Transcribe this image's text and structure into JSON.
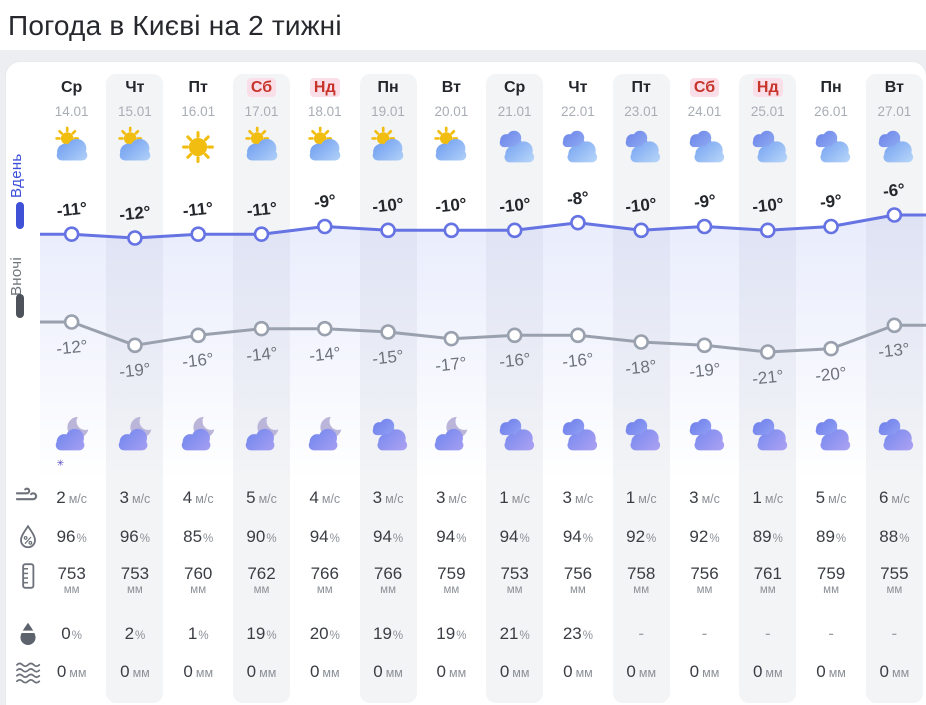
{
  "title": "Погода в Києві на 2 тижні",
  "sidebar": {
    "day_label": "Вдень",
    "night_label": "Вночі"
  },
  "units": {
    "wind": "м/с",
    "humidity": "%",
    "pressure": "мм",
    "precip_prob": "%",
    "precip_amount": "мм"
  },
  "colors": {
    "day_line": "#6673e3",
    "night_line": "#9aa1ae",
    "weekend_text": "#c6342a",
    "weekend_bg": "#fadfe9",
    "day_sidebar_label": "#3a4ed8",
    "night_sidebar_label": "#70757d"
  },
  "days": [
    {
      "name": "Ср",
      "date": "14.01",
      "weekend": false,
      "day_icon": "sun-cloud",
      "night_icon": "moon-cloud",
      "night_snow_star": true,
      "day_temp_label": "-11°",
      "night_temp_label": "-12°",
      "wind": "2",
      "humidity": "96",
      "pressure": "753",
      "precip_prob": "0",
      "precip_amount": "0"
    },
    {
      "name": "Чт",
      "date": "15.01",
      "weekend": false,
      "day_icon": "sun-cloud",
      "night_icon": "moon-cloud",
      "night_snow_star": false,
      "day_temp_label": "-12°",
      "night_temp_label": "-19°",
      "wind": "3",
      "humidity": "96",
      "pressure": "753",
      "precip_prob": "2",
      "precip_amount": "0"
    },
    {
      "name": "Пт",
      "date": "16.01",
      "weekend": false,
      "day_icon": "sun",
      "night_icon": "moon-cloud",
      "night_snow_star": false,
      "day_temp_label": "-11°",
      "night_temp_label": "-16°",
      "wind": "4",
      "humidity": "85",
      "pressure": "760",
      "precip_prob": "1",
      "precip_amount": "0"
    },
    {
      "name": "Сб",
      "date": "17.01",
      "weekend": true,
      "day_icon": "sun-cloud",
      "night_icon": "moon-cloud",
      "night_snow_star": false,
      "day_temp_label": "-11°",
      "night_temp_label": "-14°",
      "wind": "5",
      "humidity": "90",
      "pressure": "762",
      "precip_prob": "19",
      "precip_amount": "0"
    },
    {
      "name": "Нд",
      "date": "18.01",
      "weekend": true,
      "day_icon": "sun-cloud",
      "night_icon": "moon-cloud",
      "night_snow_star": false,
      "day_temp_label": "-9°",
      "night_temp_label": "-14°",
      "wind": "4",
      "humidity": "94",
      "pressure": "766",
      "precip_prob": "20",
      "precip_amount": "0"
    },
    {
      "name": "Пн",
      "date": "19.01",
      "weekend": false,
      "day_icon": "sun-cloud",
      "night_icon": "night-cloudy",
      "night_snow_star": false,
      "day_temp_label": "-10°",
      "night_temp_label": "-15°",
      "wind": "3",
      "humidity": "94",
      "pressure": "766",
      "precip_prob": "19",
      "precip_amount": "0"
    },
    {
      "name": "Вт",
      "date": "20.01",
      "weekend": false,
      "day_icon": "sun-cloud",
      "night_icon": "moon-cloud",
      "night_snow_star": false,
      "day_temp_label": "-10°",
      "night_temp_label": "-17°",
      "wind": "3",
      "humidity": "94",
      "pressure": "759",
      "precip_prob": "19",
      "precip_amount": "0"
    },
    {
      "name": "Ср",
      "date": "21.01",
      "weekend": false,
      "day_icon": "cloudy",
      "night_icon": "night-cloudy",
      "night_snow_star": false,
      "day_temp_label": "-10°",
      "night_temp_label": "-16°",
      "wind": "1",
      "humidity": "94",
      "pressure": "753",
      "precip_prob": "21",
      "precip_amount": "0"
    },
    {
      "name": "Чт",
      "date": "22.01",
      "weekend": false,
      "day_icon": "cloudy",
      "night_icon": "night-cloudy",
      "night_snow_star": false,
      "day_temp_label": "-8°",
      "night_temp_label": "-16°",
      "wind": "3",
      "humidity": "94",
      "pressure": "756",
      "precip_prob": "23",
      "precip_amount": "0"
    },
    {
      "name": "Пт",
      "date": "23.01",
      "weekend": false,
      "day_icon": "cloudy",
      "night_icon": "night-cloudy",
      "night_snow_star": false,
      "day_temp_label": "-10°",
      "night_temp_label": "-18°",
      "wind": "1",
      "humidity": "92",
      "pressure": "758",
      "precip_prob": "-",
      "precip_amount": "0"
    },
    {
      "name": "Сб",
      "date": "24.01",
      "weekend": true,
      "day_icon": "cloudy",
      "night_icon": "night-cloudy",
      "night_snow_star": false,
      "day_temp_label": "-9°",
      "night_temp_label": "-19°",
      "wind": "3",
      "humidity": "92",
      "pressure": "756",
      "precip_prob": "-",
      "precip_amount": "0"
    },
    {
      "name": "Нд",
      "date": "25.01",
      "weekend": true,
      "day_icon": "cloudy",
      "night_icon": "night-cloudy",
      "night_snow_star": false,
      "day_temp_label": "-10°",
      "night_temp_label": "-21°",
      "wind": "1",
      "humidity": "89",
      "pressure": "761",
      "precip_prob": "-",
      "precip_amount": "0"
    },
    {
      "name": "Пн",
      "date": "26.01",
      "weekend": false,
      "day_icon": "cloudy",
      "night_icon": "night-cloudy",
      "night_snow_star": false,
      "day_temp_label": "-9°",
      "night_temp_label": "-20°",
      "wind": "5",
      "humidity": "89",
      "pressure": "759",
      "precip_prob": "-",
      "precip_amount": "0"
    },
    {
      "name": "Вт",
      "date": "27.01",
      "weekend": false,
      "day_icon": "cloudy",
      "night_icon": "night-cloudy",
      "night_snow_star": false,
      "day_temp_label": "-6°",
      "night_temp_label": "-13°",
      "wind": "6",
      "humidity": "88",
      "pressure": "755",
      "precip_prob": "-",
      "precip_amount": "0"
    }
  ],
  "chart_data": {
    "type": "line",
    "title": "Погода в Києві на 2 тижні",
    "x_labels": [
      "14.01",
      "15.01",
      "16.01",
      "17.01",
      "18.01",
      "19.01",
      "20.01",
      "21.01",
      "22.01",
      "23.01",
      "24.01",
      "25.01",
      "26.01",
      "27.01"
    ],
    "series": [
      {
        "name": "Вдень",
        "unit": "°C",
        "color": "#6673e3",
        "values": [
          -11,
          -12,
          -11,
          -11,
          -9,
          -10,
          -10,
          -10,
          -8,
          -10,
          -9,
          -10,
          -9,
          -6
        ]
      },
      {
        "name": "Вночі",
        "unit": "°C",
        "color": "#9aa1ae",
        "values": [
          -12,
          -19,
          -16,
          -14,
          -14,
          -15,
          -17,
          -16,
          -16,
          -18,
          -19,
          -21,
          -20,
          -13
        ]
      }
    ],
    "extra_rows": [
      {
        "name": "wind_m_s",
        "values": [
          2,
          3,
          4,
          5,
          4,
          3,
          3,
          1,
          3,
          1,
          3,
          1,
          5,
          6
        ]
      },
      {
        "name": "humidity_pct",
        "values": [
          96,
          96,
          85,
          90,
          94,
          94,
          94,
          94,
          94,
          92,
          92,
          89,
          89,
          88
        ]
      },
      {
        "name": "pressure_mm",
        "values": [
          753,
          753,
          760,
          762,
          766,
          766,
          759,
          753,
          756,
          758,
          756,
          761,
          759,
          755
        ]
      },
      {
        "name": "precip_probability_pct",
        "values": [
          0,
          2,
          1,
          19,
          20,
          19,
          19,
          21,
          23,
          null,
          null,
          null,
          null,
          null
        ]
      },
      {
        "name": "precip_amount_mm",
        "values": [
          0,
          0,
          0,
          0,
          0,
          0,
          0,
          0,
          0,
          0,
          0,
          0,
          0,
          0
        ]
      }
    ],
    "marker": "open-circle",
    "grid": false,
    "legend_position": "left-vertical"
  }
}
